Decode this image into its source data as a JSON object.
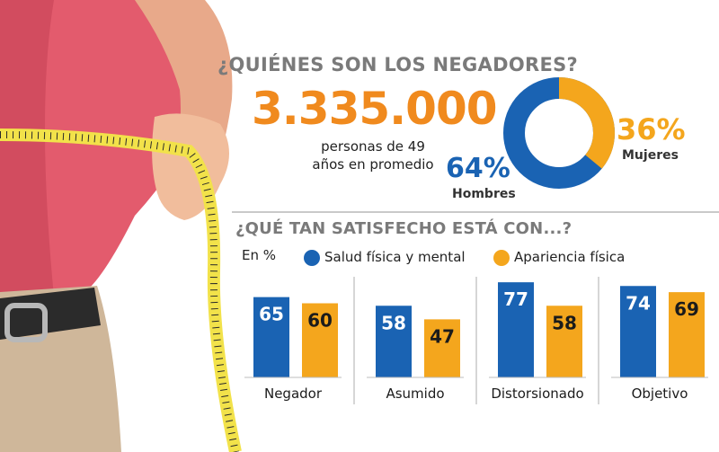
{
  "colors": {
    "blue": "#1a63b3",
    "orange": "#f4a61d",
    "accent_orange": "#f08a1e",
    "grey_title": "#7a7a7a"
  },
  "header": {
    "title": "¿QUIÉNES SON LOS NEGADORES?",
    "big_number": "3.335.000",
    "caption": "personas de 49 años en promedio"
  },
  "gender": {
    "women_pct": "36%",
    "women_label": "Mujeres",
    "men_pct": "64%",
    "men_label": "Hombres",
    "women_value": 36,
    "men_value": 64
  },
  "satisfaction": {
    "title": "¿QUÉ TAN SATISFECHO ESTÁ CON...?",
    "unit": "En %"
  },
  "chart_data": [
    {
      "type": "pie",
      "title": "¿QUIÉNES SON LOS NEGADORES?",
      "categories": [
        "Hombres",
        "Mujeres"
      ],
      "values": [
        64,
        36
      ]
    },
    {
      "type": "bar",
      "title": "¿QUÉ TAN SATISFECHO ESTÁ CON...?",
      "ylabel": "En %",
      "categories": [
        "Negador",
        "Asumido",
        "Distorsionado",
        "Objetivo"
      ],
      "series": [
        {
          "name": "Salud física y mental",
          "values": [
            65,
            58,
            77,
            74
          ]
        },
        {
          "name": "Apariencia física",
          "values": [
            60,
            47,
            58,
            69
          ]
        }
      ],
      "ylim": [
        0,
        80
      ],
      "grid": false,
      "legend": "top"
    }
  ]
}
